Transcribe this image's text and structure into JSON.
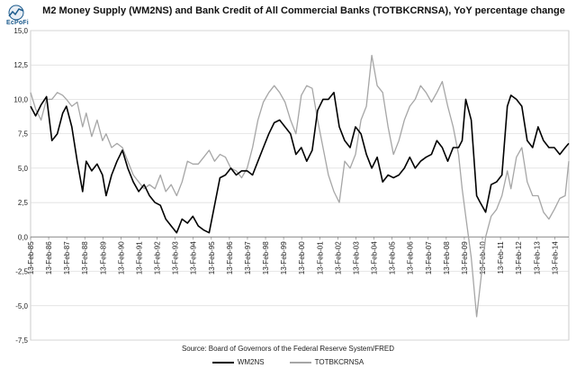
{
  "logo": {
    "text": "EcPoFi"
  },
  "chart_data": {
    "type": "line",
    "title": "M2 Money Supply (WM2NS) and Bank Credit of All Commercial Banks (TOTBKCRNSA), YoY percentage change",
    "source": "Source: Board of Governors of the Federal Reserve System/FRED",
    "ylim": [
      -7.5,
      15.0
    ],
    "yticks": [
      "-7,5",
      "-5,0",
      "-2,5",
      "0,0",
      "2,5",
      "5,0",
      "7,5",
      "10,0",
      "12,5",
      "15,0"
    ],
    "ytick_values": [
      -7.5,
      -5.0,
      -2.5,
      0.0,
      2.5,
      5.0,
      7.5,
      10.0,
      12.5,
      15.0
    ],
    "xlim": [
      1985.12,
      2014.9
    ],
    "xticks": [
      "13-Feb-85",
      "13-Feb-86",
      "13-Feb-87",
      "13-Feb-88",
      "13-Feb-89",
      "13-Feb-90",
      "13-Feb-91",
      "13-Feb-92",
      "13-Feb-93",
      "13-Feb-94",
      "13-Feb-95",
      "13-Feb-96",
      "13-Feb-97",
      "13-Feb-98",
      "13-Feb-99",
      "13-Feb-00",
      "13-Feb-01",
      "13-Feb-02",
      "13-Feb-03",
      "13-Feb-04",
      "13-Feb-05",
      "13-Feb-06",
      "13-Feb-07",
      "13-Feb-08",
      "13-Feb-09",
      "13-Feb-10",
      "13-Feb-11",
      "13-Feb-12",
      "13-Feb-13",
      "13-Feb-14"
    ],
    "xtick_values": [
      1985.12,
      1986.12,
      1987.12,
      1988.12,
      1989.12,
      1990.12,
      1991.12,
      1992.12,
      1993.12,
      1994.12,
      1995.12,
      1996.12,
      1997.12,
      1998.12,
      1999.12,
      2000.12,
      2001.12,
      2002.12,
      2003.12,
      2004.12,
      2005.12,
      2006.12,
      2007.12,
      2008.12,
      2009.12,
      2010.12,
      2011.12,
      2012.12,
      2013.12,
      2014.12
    ],
    "grid": true,
    "legend": "bottom-center",
    "series": [
      {
        "name": "WM2NS",
        "color": "#000000",
        "x": [
          1985.12,
          1985.4,
          1985.7,
          1986.0,
          1986.3,
          1986.6,
          1986.9,
          1987.1,
          1987.4,
          1987.7,
          1988.0,
          1988.2,
          1988.5,
          1988.8,
          1989.1,
          1989.3,
          1989.6,
          1989.9,
          1990.2,
          1990.5,
          1990.8,
          1991.1,
          1991.4,
          1991.7,
          1992.0,
          1992.3,
          1992.6,
          1992.9,
          1993.2,
          1993.5,
          1993.8,
          1994.1,
          1994.4,
          1994.7,
          1995.0,
          1995.3,
          1995.6,
          1995.9,
          1996.2,
          1996.5,
          1996.8,
          1997.1,
          1997.4,
          1997.7,
          1998.0,
          1998.3,
          1998.6,
          1998.9,
          1999.2,
          1999.5,
          1999.8,
          2000.1,
          2000.4,
          2000.7,
          2001.0,
          2001.3,
          2001.6,
          2001.9,
          2002.2,
          2002.5,
          2002.8,
          2003.1,
          2003.4,
          2003.7,
          2004.0,
          2004.3,
          2004.6,
          2004.9,
          2005.2,
          2005.5,
          2005.8,
          2006.1,
          2006.4,
          2006.7,
          2007.0,
          2007.3,
          2007.6,
          2007.9,
          2008.2,
          2008.5,
          2008.8,
          2009.0,
          2009.2,
          2009.5,
          2009.8,
          2010.0,
          2010.3,
          2010.6,
          2010.9,
          2011.2,
          2011.5,
          2011.7,
          2012.0,
          2012.3,
          2012.6,
          2012.9,
          2013.2,
          2013.5,
          2013.8,
          2014.1,
          2014.4,
          2014.7,
          2014.9
        ],
        "y": [
          9.5,
          8.8,
          9.6,
          10.2,
          7.0,
          7.5,
          9.0,
          9.5,
          8.0,
          5.5,
          3.3,
          5.5,
          4.8,
          5.3,
          4.5,
          3.0,
          4.5,
          5.5,
          6.3,
          5.0,
          4.0,
          3.3,
          3.8,
          3.0,
          2.5,
          2.3,
          1.3,
          0.8,
          0.3,
          1.3,
          1.0,
          1.5,
          0.8,
          0.5,
          0.3,
          2.3,
          4.3,
          4.5,
          5.0,
          4.5,
          4.8,
          4.8,
          4.5,
          5.5,
          6.5,
          7.5,
          8.3,
          8.5,
          8.0,
          7.5,
          6.0,
          6.5,
          5.5,
          6.3,
          9.2,
          10.0,
          10.0,
          10.5,
          8.0,
          7.0,
          6.5,
          8.0,
          7.5,
          6.0,
          5.0,
          5.8,
          4.0,
          4.5,
          4.3,
          4.5,
          5.0,
          5.8,
          5.0,
          5.5,
          5.8,
          6.0,
          7.0,
          6.5,
          5.5,
          6.5,
          6.5,
          7.0,
          10.0,
          8.5,
          3.0,
          2.5,
          1.8,
          3.8,
          4.0,
          4.5,
          9.5,
          10.3,
          10.0,
          9.5,
          7.0,
          6.5,
          8.0,
          7.0,
          6.5,
          6.5,
          6.0,
          6.5,
          6.8
        ]
      },
      {
        "name": "TOTBKCRNSA",
        "color": "#a6a6a6",
        "x": [
          1985.12,
          1985.4,
          1985.7,
          1986.0,
          1986.3,
          1986.6,
          1986.9,
          1987.1,
          1987.4,
          1987.7,
          1988.0,
          1988.2,
          1988.5,
          1988.8,
          1989.1,
          1989.3,
          1989.6,
          1989.9,
          1990.2,
          1990.5,
          1990.8,
          1991.1,
          1991.4,
          1991.7,
          1992.0,
          1992.3,
          1992.6,
          1992.9,
          1993.2,
          1993.5,
          1993.8,
          1994.1,
          1994.4,
          1994.7,
          1995.0,
          1995.3,
          1995.6,
          1995.9,
          1996.2,
          1996.5,
          1996.8,
          1997.1,
          1997.4,
          1997.7,
          1998.0,
          1998.3,
          1998.6,
          1998.9,
          1999.2,
          1999.5,
          1999.8,
          2000.1,
          2000.4,
          2000.7,
          2001.0,
          2001.3,
          2001.6,
          2001.9,
          2002.2,
          2002.5,
          2002.8,
          2003.1,
          2003.4,
          2003.7,
          2004.0,
          2004.3,
          2004.6,
          2004.9,
          2005.2,
          2005.5,
          2005.8,
          2006.1,
          2006.4,
          2006.7,
          2007.0,
          2007.3,
          2007.6,
          2007.9,
          2008.2,
          2008.5,
          2008.8,
          2009.0,
          2009.2,
          2009.5,
          2009.8,
          2010.0,
          2010.3,
          2010.6,
          2010.9,
          2011.2,
          2011.5,
          2011.7,
          2012.0,
          2012.3,
          2012.6,
          2012.9,
          2013.2,
          2013.5,
          2013.8,
          2014.1,
          2014.4,
          2014.7,
          2014.9
        ],
        "y": [
          10.5,
          9.3,
          8.5,
          10.0,
          10.0,
          10.5,
          10.3,
          10.0,
          9.5,
          9.8,
          8.0,
          9.0,
          7.3,
          8.5,
          7.0,
          7.5,
          6.5,
          6.8,
          6.5,
          5.5,
          4.5,
          4.0,
          3.5,
          3.8,
          3.5,
          4.5,
          3.3,
          3.8,
          3.0,
          4.0,
          5.5,
          5.3,
          5.3,
          5.8,
          6.3,
          5.5,
          6.0,
          5.8,
          5.0,
          4.8,
          4.3,
          5.0,
          6.5,
          8.5,
          9.8,
          10.5,
          11.0,
          10.5,
          9.8,
          8.5,
          7.5,
          10.3,
          11.0,
          10.8,
          8.5,
          6.5,
          4.5,
          3.3,
          2.5,
          5.5,
          5.0,
          6.0,
          8.5,
          9.5,
          13.2,
          11.0,
          10.5,
          8.0,
          6.0,
          7.0,
          8.5,
          9.5,
          10.0,
          11.0,
          10.5,
          9.8,
          10.5,
          11.3,
          9.5,
          8.0,
          6.0,
          3.5,
          1.5,
          -1.5,
          -5.8,
          -3.5,
          0.0,
          1.5,
          2.0,
          3.0,
          4.8,
          3.5,
          5.8,
          6.5,
          4.0,
          3.0,
          3.0,
          1.8,
          1.3,
          2.0,
          2.8,
          3.0,
          5.5
        ]
      }
    ]
  }
}
